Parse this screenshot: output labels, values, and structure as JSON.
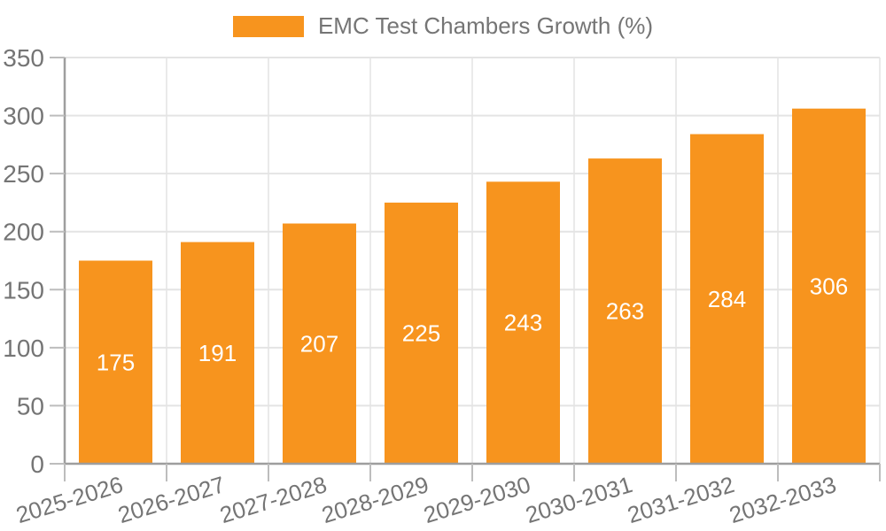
{
  "chart_data": {
    "type": "bar",
    "title": "EMC Test Chambers Growth (%)",
    "legend_entries": [
      "EMC Test Chambers Growth (%)"
    ],
    "legend_position": "top-center",
    "categories": [
      "2025-2026",
      "2026-2027",
      "2027-2028",
      "2028-2029",
      "2029-2030",
      "2030-2031",
      "2031-2032",
      "2032-2033"
    ],
    "values": [
      175,
      191,
      207,
      225,
      243,
      263,
      284,
      306
    ],
    "xlabel": "",
    "ylabel": "",
    "ylim": [
      0,
      350
    ],
    "ytick_step": 50,
    "yticks": [
      0,
      50,
      100,
      150,
      200,
      250,
      300,
      350
    ],
    "grid": true,
    "bar_value_labels": true,
    "colors": {
      "bar": "#F7941E",
      "grid": "#E4E4E4",
      "axis": "#9E9E9E",
      "tick": "#BDBDBD",
      "tick_label": "#757575",
      "bar_label": "#FFFFFF",
      "legend_text": "#757575",
      "background": "#FFFFFF"
    }
  }
}
